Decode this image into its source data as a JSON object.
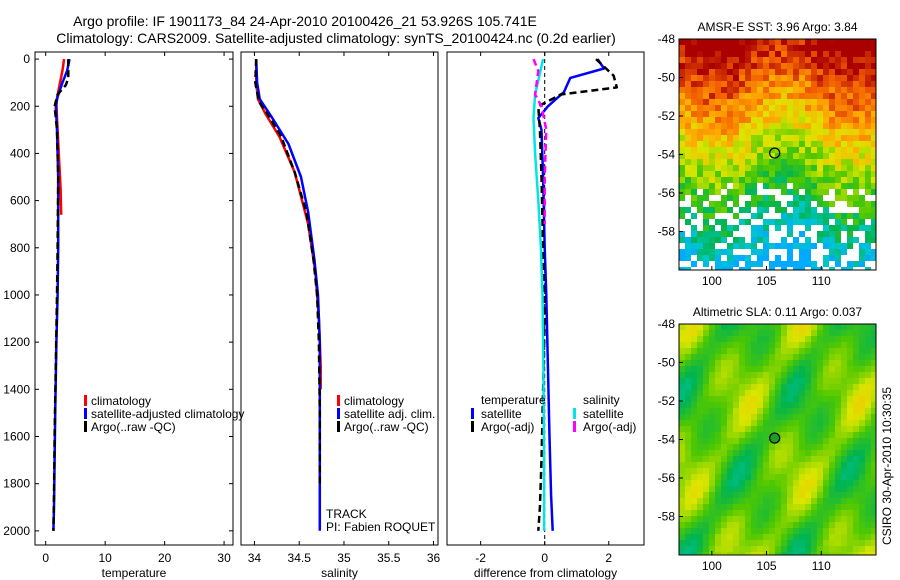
{
  "header": {
    "line1": "Argo profile: IF 1901173_84 24-Apr-2010 20100426_21 53.926S 105.741E",
    "line2": "Climatology: CARS2009. Satellite-adjusted climatology: synTS_20100424.nc (0.2d earlier)"
  },
  "side_label": "CSIRO 30-Apr-2010 10:30:35",
  "colors": {
    "climatology": "#ff0000",
    "satellite": "#0000ff",
    "argo": "#000000",
    "sal_satellite": "#00e5e5",
    "sal_argo": "#ff00ff"
  },
  "chart_data": [
    {
      "id": "temperature",
      "type": "line",
      "xlabel": "temperature",
      "ylabel": "",
      "xlim": [
        -1.8,
        31.5
      ],
      "ylim": [
        2060,
        -30
      ],
      "xticks": [
        0,
        10,
        20,
        30
      ],
      "yticks": [
        0,
        200,
        400,
        600,
        800,
        1000,
        1200,
        1400,
        1600,
        1800,
        2000
      ],
      "legend": [
        "climatology",
        "satellite-adjusted climatology",
        "Argo(..raw -QC)"
      ],
      "series": [
        {
          "name": "climatology",
          "style": "solid",
          "color": "#ff0000",
          "x": [
            3.1,
            2.8,
            2.4,
            1.8,
            1.9,
            2.2,
            2.5,
            2.6
          ],
          "y": [
            0,
            50,
            100,
            180,
            250,
            400,
            550,
            660
          ]
        },
        {
          "name": "satellite-adjusted climatology",
          "style": "solid",
          "color": "#0000ff",
          "x": [
            4.0,
            3.6,
            2.8,
            2.0,
            1.7,
            1.9,
            2.1,
            2.1,
            2.0,
            1.8,
            1.6,
            1.5,
            1.4,
            1.3
          ],
          "y": [
            0,
            50,
            100,
            160,
            200,
            300,
            500,
            800,
            1000,
            1200,
            1500,
            1700,
            1900,
            2000
          ]
        },
        {
          "name": "Argo(..raw -QC)",
          "style": "dashed",
          "color": "#000000",
          "x": [
            3.8,
            3.8,
            3.4,
            2.0,
            1.5,
            1.9,
            2.1,
            2.0,
            1.9,
            1.7,
            1.5,
            1.4,
            1.3
          ],
          "y": [
            0,
            80,
            110,
            150,
            200,
            300,
            500,
            800,
            1000,
            1300,
            1600,
            1850,
            2000
          ]
        }
      ]
    },
    {
      "id": "salinity",
      "type": "line",
      "xlabel": "salinity",
      "ylabel": "",
      "xlim": [
        33.85,
        36.05
      ],
      "ylim": [
        2060,
        -30
      ],
      "xticks": [
        34,
        34.5,
        35,
        35.5,
        36
      ],
      "yticks": [],
      "legend": [
        "climatology",
        "satellite adj. clim.",
        "Argo(..raw -QC)"
      ],
      "annotations": [
        "TRACK",
        "PI: Fabien ROQUET"
      ],
      "series": [
        {
          "name": "climatology",
          "style": "solid",
          "color": "#ff0000",
          "x": [
            34.02,
            34.02,
            34.04,
            34.12,
            34.28,
            34.45,
            34.6,
            34.68,
            34.72,
            34.74,
            34.74
          ],
          "y": [
            0,
            100,
            170,
            230,
            330,
            480,
            700,
            900,
            1100,
            1300,
            1400
          ]
        },
        {
          "name": "satellite adj. clim.",
          "style": "solid",
          "color": "#0000ff",
          "x": [
            34.02,
            34.03,
            34.06,
            34.2,
            34.38,
            34.52,
            34.6,
            34.67,
            34.71,
            34.73,
            34.73,
            34.73,
            34.73
          ],
          "y": [
            0,
            100,
            170,
            250,
            360,
            500,
            650,
            850,
            1000,
            1200,
            1500,
            1800,
            2000
          ]
        },
        {
          "name": "Argo(..raw -QC)",
          "style": "dashed",
          "color": "#000000",
          "x": [
            34.02,
            34.01,
            34.05,
            34.14,
            34.3,
            34.45,
            34.58,
            34.66,
            34.7,
            34.72,
            34.73,
            34.73
          ],
          "y": [
            0,
            100,
            180,
            230,
            330,
            480,
            650,
            850,
            1000,
            1200,
            1500,
            1800
          ]
        }
      ]
    },
    {
      "id": "difference",
      "type": "line",
      "xlabel": "difference from climatology",
      "ylabel": "",
      "xlim": [
        -3.05,
        3.1
      ],
      "ylim": [
        2060,
        -30
      ],
      "xticks": [
        -2,
        0,
        2
      ],
      "yticks": [],
      "legend_temperature_title": "temperature",
      "legend_salinity_title": "salinity",
      "legend_temperature": [
        "satellite",
        "Argo(-adj)"
      ],
      "legend_salinity": [
        "satellite",
        "Argo(-adj)"
      ],
      "series": [
        {
          "name": "temperature satellite",
          "style": "solid",
          "color": "#0000ff",
          "x": [
            1.65,
            1.85,
            0.8,
            0.6,
            0.1,
            -0.2,
            -0.1,
            -0.05,
            0.0,
            0.05,
            0.1,
            0.15,
            0.2,
            0.25
          ],
          "y": [
            0,
            40,
            80,
            140,
            200,
            250,
            300,
            500,
            800,
            1000,
            1300,
            1600,
            1850,
            2000
          ]
        },
        {
          "name": "temperature Argo(-adj)",
          "style": "dashed",
          "color": "#000000",
          "x": [
            1.6,
            2.15,
            2.25,
            0.5,
            -0.2,
            -0.15,
            -0.1,
            -0.05,
            0.0,
            -0.05,
            -0.1,
            -0.15,
            -0.2
          ],
          "y": [
            0,
            70,
            120,
            150,
            200,
            300,
            500,
            800,
            1100,
            1400,
            1700,
            1900,
            2000
          ]
        },
        {
          "name": "salinity satellite",
          "style": "solid",
          "color": "#00e5e5",
          "x": [
            -0.05,
            -0.3,
            -0.35,
            -0.3,
            -0.2,
            -0.12,
            -0.07,
            -0.04,
            -0.02,
            -0.02
          ],
          "y": [
            0,
            150,
            250,
            400,
            600,
            800,
            1000,
            1300,
            1700,
            2000
          ]
        },
        {
          "name": "salinity Argo(-adj)",
          "style": "dashed",
          "color": "#ff00ff",
          "x": [
            -0.35,
            -0.2,
            -0.3,
            -0.1,
            0.05,
            0.0,
            0.0
          ],
          "y": [
            0,
            50,
            150,
            200,
            300,
            500,
            700
          ]
        }
      ]
    },
    {
      "id": "sst_map",
      "type": "heatmap",
      "title": "AMSR-E SST: 3.96  Argo: 3.84",
      "xticks": [
        100,
        105,
        110
      ],
      "yticks": [
        -48,
        -50,
        -52,
        -54,
        -56,
        -58
      ],
      "xlim": [
        97,
        115
      ],
      "ylim": [
        -60,
        -48
      ],
      "argo_position": [
        105.741,
        -53.926
      ]
    },
    {
      "id": "sla_map",
      "type": "heatmap",
      "title": "Altimetric SLA: 0.11  Argo: 0.037",
      "xticks": [
        100,
        105,
        110
      ],
      "yticks": [
        -48,
        -50,
        -52,
        -54,
        -56,
        -58
      ],
      "xlim": [
        97,
        115
      ],
      "ylim": [
        -60,
        -48
      ],
      "argo_position": [
        105.741,
        -53.926
      ]
    }
  ]
}
